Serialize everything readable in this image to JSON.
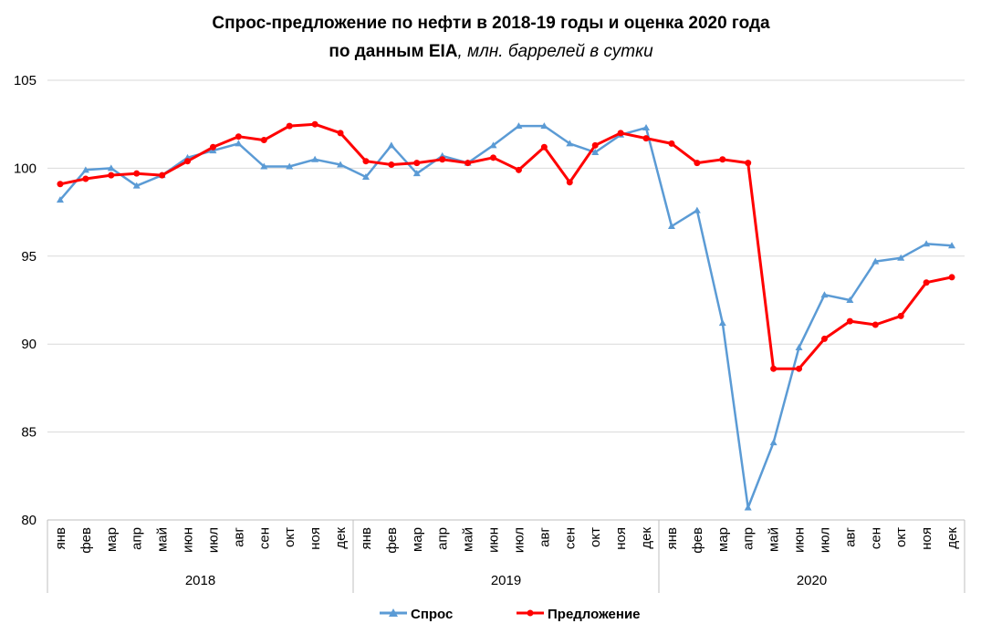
{
  "chart_data": {
    "type": "line",
    "title_line1": "Спрос-предложение по нефти в 2018-19 годы и оценка 2020 года",
    "title_line2_bold": "по данным EIA",
    "title_line2_italic": ", млн. баррелей в сутки",
    "ylim": [
      80,
      105
    ],
    "yticks": [
      "80",
      "85",
      "90",
      "95",
      "100",
      "105"
    ],
    "years": [
      "2018",
      "2019",
      "2020"
    ],
    "categories": [
      "янв",
      "фев",
      "мар",
      "апр",
      "май",
      "июн",
      "июл",
      "авг",
      "сен",
      "окт",
      "ноя",
      "дек",
      "янв",
      "фев",
      "мар",
      "апр",
      "май",
      "июн",
      "июл",
      "авг",
      "сен",
      "окт",
      "ноя",
      "дек",
      "янв",
      "фев",
      "мар",
      "апр",
      "май",
      "июн",
      "июл",
      "авг",
      "сен",
      "окт",
      "ноя",
      "дек"
    ],
    "series": [
      {
        "name": "Спрос",
        "color": "#5B9BD5",
        "marker": "triangle",
        "values": [
          98.2,
          99.9,
          100.0,
          99.0,
          99.6,
          100.6,
          101.0,
          101.4,
          100.1,
          100.1,
          100.5,
          100.2,
          99.5,
          101.3,
          99.7,
          100.7,
          100.3,
          101.3,
          102.4,
          102.4,
          101.4,
          100.9,
          101.9,
          102.3,
          96.7,
          97.6,
          91.2,
          80.7,
          84.4,
          89.8,
          92.8,
          92.5,
          94.7,
          94.9,
          95.7,
          95.6
        ]
      },
      {
        "name": "Предложение",
        "color": "#FF0000",
        "marker": "circle",
        "values": [
          99.1,
          99.4,
          99.6,
          99.7,
          99.6,
          100.4,
          101.2,
          101.8,
          101.6,
          102.4,
          102.5,
          102.0,
          100.4,
          100.2,
          100.3,
          100.5,
          100.3,
          100.6,
          99.9,
          101.2,
          99.2,
          101.3,
          102.0,
          101.7,
          101.4,
          100.3,
          100.5,
          100.3,
          88.6,
          88.6,
          90.3,
          91.3,
          91.1,
          91.6,
          93.5,
          93.8
        ]
      }
    ]
  }
}
